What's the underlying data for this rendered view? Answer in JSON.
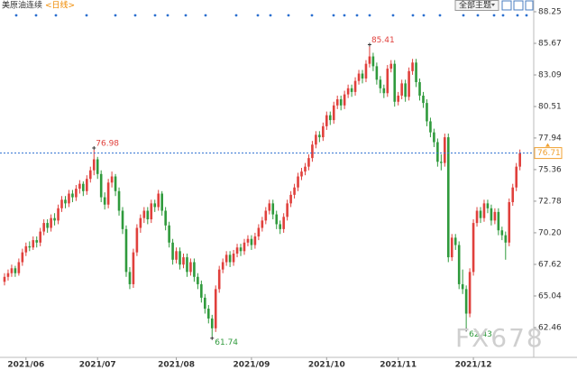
{
  "chart_data": {
    "type": "candlestick",
    "title": "美原油连续",
    "period": "<日线>",
    "theme_button": "全部主题",
    "watermark": "FX678",
    "up_color": "#e0403c",
    "down_color": "#2f9a3c",
    "last_color": "#f0a030",
    "ylim": [
      60.1,
      88.84
    ],
    "yticks": [
      88.25,
      85.67,
      83.09,
      80.51,
      77.94,
      75.36,
      72.78,
      {
        "value": 70.2,
        "label": "70.20"
      },
      67.62,
      65.04,
      62.46
    ],
    "categories": [
      null,
      null,
      null,
      null,
      null,
      null,
      "2021/06",
      null,
      null,
      null,
      null,
      null,
      null,
      null,
      null,
      null,
      null,
      null,
      null,
      null,
      null,
      null,
      null,
      null,
      null,
      null,
      "2021/07",
      null,
      null,
      null,
      null,
      null,
      null,
      null,
      null,
      null,
      null,
      null,
      null,
      null,
      null,
      null,
      null,
      null,
      null,
      null,
      null,
      null,
      "2021/08",
      null,
      null,
      null,
      null,
      null,
      null,
      null,
      null,
      null,
      null,
      null,
      null,
      null,
      null,
      null,
      null,
      null,
      null,
      null,
      null,
      "2021/09",
      null,
      null,
      null,
      null,
      null,
      null,
      null,
      null,
      null,
      null,
      null,
      null,
      null,
      null,
      null,
      null,
      null,
      null,
      null,
      null,
      "2021/10",
      null,
      null,
      null,
      null,
      null,
      null,
      null,
      null,
      null,
      null,
      null,
      null,
      null,
      null,
      null,
      null,
      null,
      null,
      null,
      "2021/11",
      null,
      null,
      null,
      null,
      null,
      null,
      null,
      null,
      null,
      null,
      null,
      null,
      null,
      null,
      null,
      null,
      null,
      null,
      null,
      null,
      "2021/12",
      null,
      null,
      null,
      null,
      null,
      null,
      null,
      null,
      null,
      null,
      null,
      null,
      null
    ],
    "ohlc": [
      [
        66.2,
        66.9,
        65.9,
        66.6
      ],
      [
        66.6,
        67.2,
        66.3,
        66.9
      ],
      [
        66.9,
        67.6,
        66.6,
        67.3
      ],
      [
        67.3,
        67.5,
        66.6,
        66.9
      ],
      [
        66.9,
        68.1,
        66.7,
        67.8
      ],
      [
        67.8,
        68.9,
        67.5,
        68.6
      ],
      [
        68.6,
        69.4,
        68.3,
        69.1
      ],
      [
        69.1,
        69.5,
        68.7,
        69.0
      ],
      [
        69.0,
        69.9,
        68.8,
        69.6
      ],
      [
        69.6,
        69.9,
        69.0,
        69.4
      ],
      [
        69.4,
        70.6,
        69.1,
        70.3
      ],
      [
        70.3,
        71.3,
        70.0,
        71.0
      ],
      [
        71.0,
        71.3,
        70.2,
        70.6
      ],
      [
        70.6,
        71.7,
        70.3,
        71.4
      ],
      [
        71.4,
        71.8,
        70.8,
        71.2
      ],
      [
        71.2,
        72.5,
        70.9,
        72.2
      ],
      [
        72.2,
        73.2,
        71.9,
        72.9
      ],
      [
        72.9,
        73.2,
        72.2,
        72.6
      ],
      [
        72.6,
        73.7,
        72.3,
        73.4
      ],
      [
        73.4,
        73.7,
        72.7,
        73.1
      ],
      [
        73.1,
        74.1,
        72.8,
        73.8
      ],
      [
        73.8,
        74.5,
        73.4,
        74.2
      ],
      [
        74.2,
        74.4,
        73.2,
        73.6
      ],
      [
        73.6,
        74.9,
        73.3,
        74.6
      ],
      [
        74.6,
        75.6,
        74.3,
        75.3
      ],
      [
        75.3,
        76.98,
        74.9,
        76.2
      ],
      [
        76.2,
        76.4,
        74.6,
        75.0
      ],
      [
        75.0,
        75.3,
        72.7,
        73.1
      ],
      [
        73.1,
        73.5,
        72.1,
        72.5
      ],
      [
        72.5,
        74.6,
        72.2,
        74.3
      ],
      [
        74.3,
        75.2,
        73.9,
        74.8
      ],
      [
        74.8,
        75.0,
        73.2,
        73.6
      ],
      [
        73.6,
        73.9,
        71.6,
        72.0
      ],
      [
        72.0,
        72.3,
        70.1,
        70.5
      ],
      [
        70.5,
        70.8,
        66.6,
        67.0
      ],
      [
        67.0,
        67.4,
        65.6,
        66.0
      ],
      [
        66.0,
        68.9,
        65.7,
        68.6
      ],
      [
        68.6,
        70.9,
        68.3,
        70.6
      ],
      [
        70.6,
        71.7,
        70.2,
        71.4
      ],
      [
        71.4,
        72.3,
        71.0,
        72.0
      ],
      [
        72.0,
        72.3,
        70.9,
        71.3
      ],
      [
        71.3,
        72.9,
        71.0,
        72.6
      ],
      [
        72.6,
        72.9,
        71.9,
        72.3
      ],
      [
        72.3,
        73.7,
        72.0,
        73.4
      ],
      [
        73.4,
        73.6,
        71.6,
        72.0
      ],
      [
        72.0,
        72.3,
        70.4,
        70.8
      ],
      [
        70.8,
        71.1,
        69.0,
        69.4
      ],
      [
        69.4,
        69.7,
        67.6,
        68.0
      ],
      [
        68.0,
        69.0,
        67.7,
        68.7
      ],
      [
        68.7,
        69.0,
        67.2,
        67.6
      ],
      [
        67.6,
        68.5,
        67.3,
        68.2
      ],
      [
        68.2,
        68.5,
        66.6,
        67.0
      ],
      [
        67.0,
        68.1,
        66.7,
        67.8
      ],
      [
        67.8,
        68.1,
        66.2,
        66.6
      ],
      [
        66.6,
        66.9,
        65.6,
        66.0
      ],
      [
        66.0,
        66.3,
        64.5,
        64.9
      ],
      [
        64.9,
        65.2,
        63.6,
        64.0
      ],
      [
        64.0,
        64.3,
        62.8,
        63.2
      ],
      [
        63.2,
        63.5,
        61.74,
        62.4
      ],
      [
        62.4,
        65.9,
        62.1,
        65.6
      ],
      [
        65.6,
        67.5,
        65.3,
        67.2
      ],
      [
        67.2,
        68.1,
        66.9,
        67.8
      ],
      [
        67.8,
        68.7,
        67.5,
        68.4
      ],
      [
        68.4,
        68.7,
        67.4,
        67.8
      ],
      [
        67.8,
        68.8,
        67.5,
        68.5
      ],
      [
        68.5,
        69.3,
        68.2,
        69.0
      ],
      [
        69.0,
        69.3,
        68.3,
        68.7
      ],
      [
        68.7,
        69.7,
        68.4,
        69.4
      ],
      [
        69.4,
        70.0,
        69.1,
        69.7
      ],
      [
        69.7,
        70.0,
        68.8,
        69.2
      ],
      [
        69.2,
        70.2,
        68.9,
        69.9
      ],
      [
        69.9,
        70.9,
        69.6,
        70.6
      ],
      [
        70.6,
        71.5,
        70.3,
        71.2
      ],
      [
        71.2,
        72.3,
        70.9,
        72.0
      ],
      [
        72.0,
        72.9,
        71.7,
        72.6
      ],
      [
        72.6,
        72.9,
        71.3,
        71.7
      ],
      [
        71.7,
        72.0,
        70.5,
        70.9
      ],
      [
        70.9,
        71.2,
        70.1,
        70.5
      ],
      [
        70.5,
        71.8,
        70.2,
        71.5
      ],
      [
        71.5,
        72.9,
        71.2,
        72.6
      ],
      [
        72.6,
        73.6,
        72.3,
        73.3
      ],
      [
        73.3,
        74.2,
        73.0,
        73.9
      ],
      [
        73.9,
        75.1,
        73.6,
        74.8
      ],
      [
        74.8,
        75.5,
        74.5,
        75.2
      ],
      [
        75.2,
        75.9,
        74.9,
        75.6
      ],
      [
        75.6,
        76.6,
        75.3,
        76.3
      ],
      [
        76.3,
        77.7,
        76.0,
        77.4
      ],
      [
        77.4,
        78.5,
        77.1,
        78.2
      ],
      [
        78.2,
        78.5,
        77.6,
        78.0
      ],
      [
        78.0,
        79.2,
        77.7,
        78.9
      ],
      [
        78.9,
        80.1,
        78.6,
        79.8
      ],
      [
        79.8,
        80.1,
        79.0,
        79.4
      ],
      [
        79.4,
        80.9,
        79.1,
        80.6
      ],
      [
        80.6,
        81.4,
        80.3,
        81.1
      ],
      [
        81.1,
        81.4,
        80.2,
        80.6
      ],
      [
        80.6,
        81.8,
        80.3,
        81.5
      ],
      [
        81.5,
        82.3,
        81.2,
        82.0
      ],
      [
        82.0,
        82.3,
        81.3,
        81.7
      ],
      [
        81.7,
        82.9,
        81.4,
        82.6
      ],
      [
        82.6,
        83.5,
        82.3,
        83.2
      ],
      [
        83.2,
        83.5,
        82.4,
        82.8
      ],
      [
        82.8,
        84.3,
        82.5,
        84.0
      ],
      [
        84.0,
        85.41,
        83.7,
        84.6
      ],
      [
        84.6,
        84.9,
        83.4,
        83.8
      ],
      [
        83.8,
        84.1,
        82.3,
        82.7
      ],
      [
        82.7,
        83.0,
        81.6,
        82.0
      ],
      [
        82.0,
        82.3,
        81.2,
        81.6
      ],
      [
        81.6,
        83.9,
        81.3,
        83.6
      ],
      [
        83.6,
        84.3,
        83.3,
        84.0
      ],
      [
        84.0,
        84.3,
        80.5,
        80.9
      ],
      [
        80.9,
        81.7,
        80.6,
        81.4
      ],
      [
        81.4,
        82.7,
        81.1,
        82.4
      ],
      [
        82.4,
        82.7,
        80.9,
        81.3
      ],
      [
        81.3,
        83.7,
        81.0,
        83.4
      ],
      [
        83.4,
        84.4,
        83.1,
        84.1
      ],
      [
        84.1,
        84.4,
        82.1,
        82.5
      ],
      [
        82.5,
        82.8,
        81.0,
        81.4
      ],
      [
        81.4,
        81.7,
        80.4,
        80.8
      ],
      [
        80.8,
        81.1,
        78.9,
        79.3
      ],
      [
        79.3,
        79.6,
        78.0,
        78.4
      ],
      [
        78.4,
        78.7,
        77.2,
        77.6
      ],
      [
        77.6,
        77.9,
        75.6,
        76.0
      ],
      [
        76.0,
        76.6,
        75.3,
        75.9
      ],
      [
        75.9,
        78.3,
        75.6,
        78.0
      ],
      [
        78.0,
        78.3,
        67.8,
        68.2
      ],
      [
        68.2,
        70.1,
        67.9,
        69.8
      ],
      [
        69.8,
        70.1,
        68.8,
        69.2
      ],
      [
        69.2,
        69.5,
        65.6,
        66.0
      ],
      [
        66.0,
        67.2,
        65.2,
        65.6
      ],
      [
        65.6,
        65.9,
        62.43,
        63.6
      ],
      [
        63.6,
        67.3,
        63.3,
        67.0
      ],
      [
        67.0,
        71.3,
        66.7,
        71.0
      ],
      [
        71.0,
        72.3,
        70.7,
        72.0
      ],
      [
        72.0,
        72.3,
        71.0,
        71.4
      ],
      [
        71.4,
        72.9,
        71.1,
        72.6
      ],
      [
        72.6,
        72.9,
        71.8,
        72.2
      ],
      [
        72.2,
        72.5,
        70.8,
        71.2
      ],
      [
        71.2,
        72.2,
        70.9,
        71.9
      ],
      [
        71.9,
        72.2,
        70.0,
        70.4
      ],
      [
        70.4,
        70.7,
        69.6,
        70.0
      ],
      [
        70.0,
        70.3,
        68.0,
        69.4
      ],
      [
        69.4,
        73.0,
        69.1,
        72.7
      ],
      [
        72.7,
        74.2,
        72.4,
        73.9
      ],
      [
        73.9,
        75.9,
        73.6,
        75.6
      ],
      [
        75.6,
        77.0,
        75.3,
        76.71
      ]
    ]
  }
}
